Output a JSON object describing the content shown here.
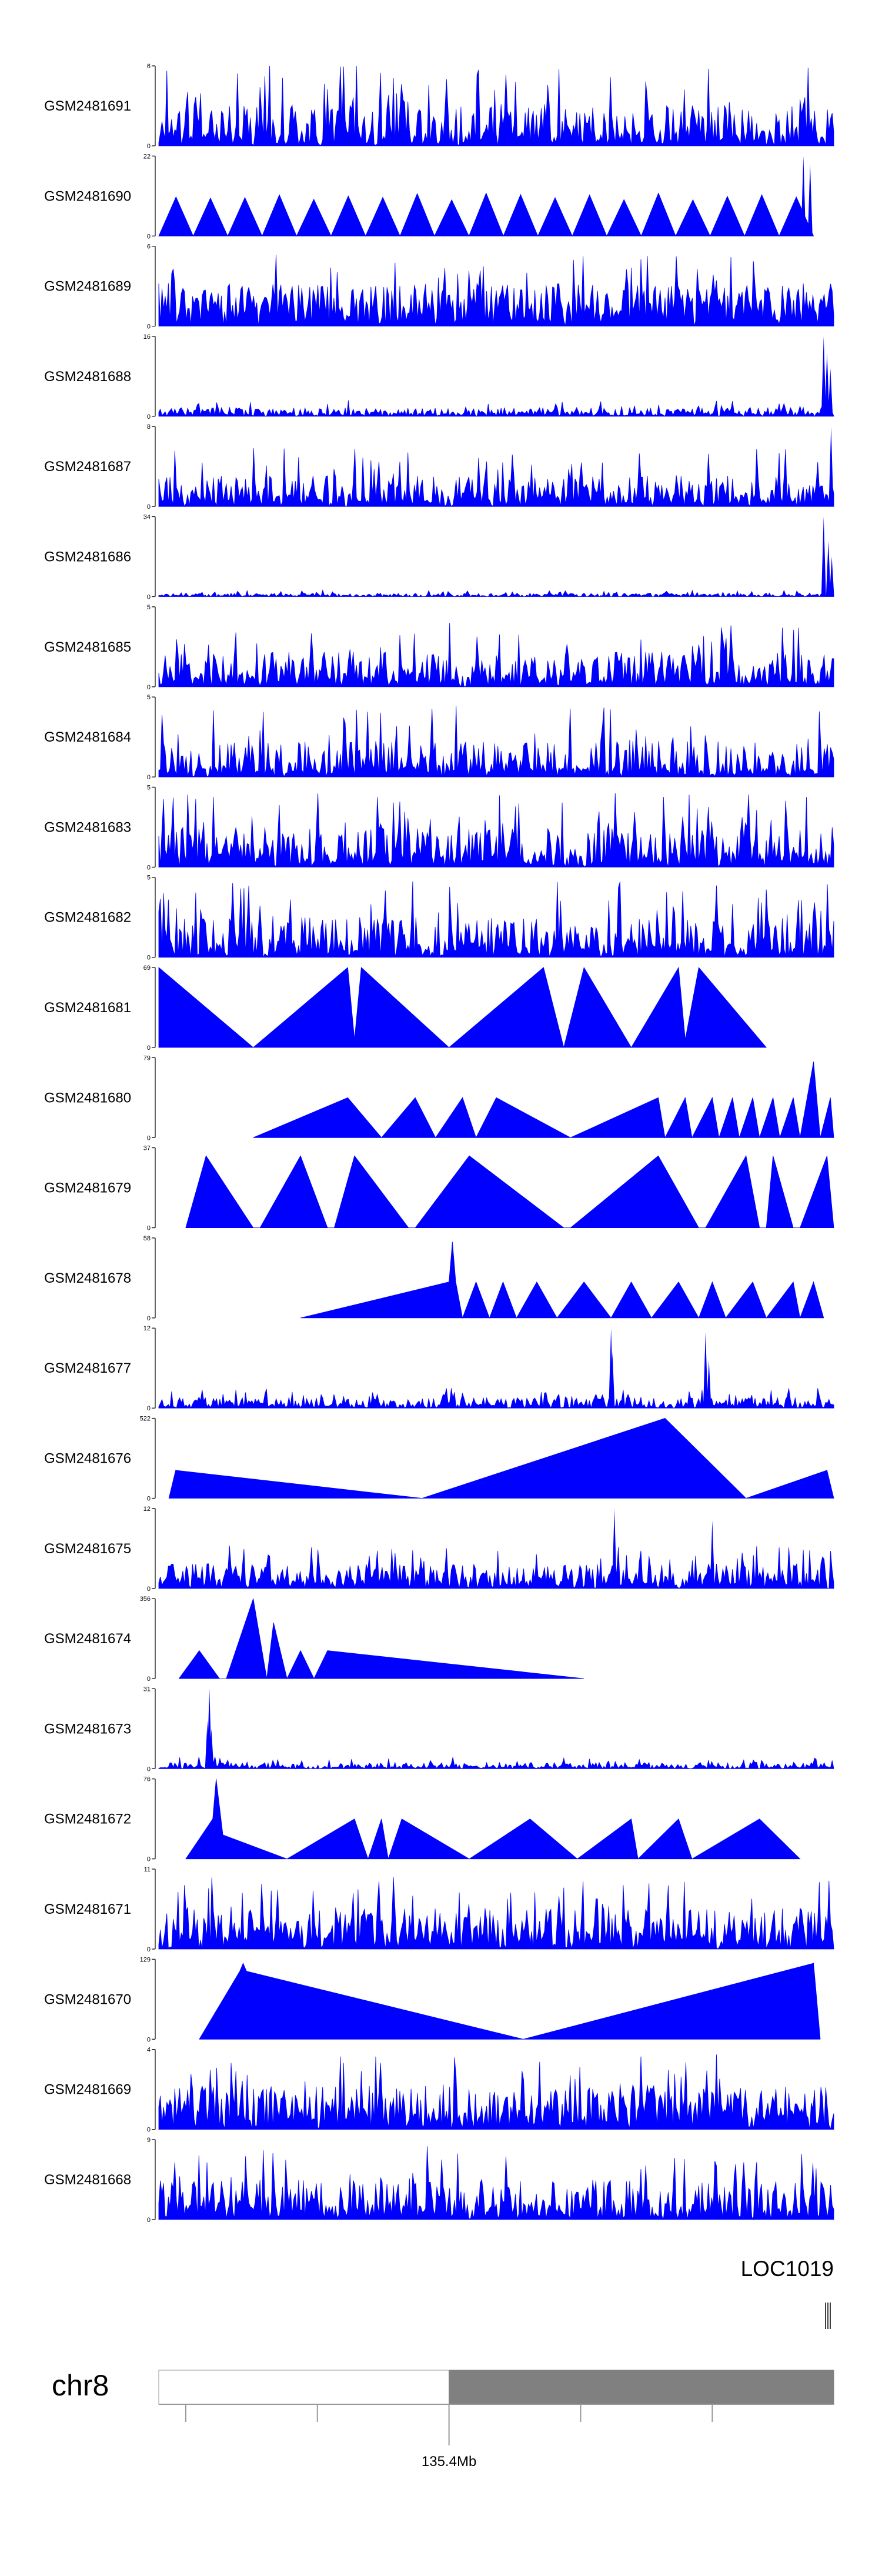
{
  "chart_data": {
    "type": "area",
    "tracks": [
      {
        "label": "GSM2481691",
        "ymax": "6",
        "ymin": "0",
        "pattern": "dense",
        "peak": 1.0,
        "fill": 0.2,
        "seed": 11
      },
      {
        "label": "GSM2481690",
        "ymax": "22",
        "ymin": "0",
        "pattern": "triangles",
        "peak": 1.0,
        "spikes": [
          [
            0.955,
            1.0
          ],
          [
            0.965,
            0.9
          ]
        ],
        "x_start": 0.0,
        "x_end": 0.97,
        "tri_count": 19,
        "tri_height": 0.5,
        "seed": 12
      },
      {
        "label": "GSM2481689",
        "ymax": "6",
        "ymin": "0",
        "pattern": "dense",
        "peak": 0.9,
        "fill": 0.3,
        "seed": 13
      },
      {
        "label": "GSM2481688",
        "ymax": "16",
        "ymin": "0",
        "pattern": "dense-low",
        "peak": 0.2,
        "fill": 0.05,
        "spikes": [
          [
            0.985,
            1.0
          ],
          [
            0.99,
            0.8
          ],
          [
            0.995,
            0.6
          ]
        ],
        "seed": 14
      },
      {
        "label": "GSM2481687",
        "ymax": "8",
        "ymin": "0",
        "pattern": "dense",
        "peak": 0.75,
        "fill": 0.15,
        "spikes": [
          [
            0.996,
            1.0
          ]
        ],
        "seed": 15
      },
      {
        "label": "GSM2481686",
        "ymax": "34",
        "ymin": "0",
        "pattern": "dense-low",
        "peak": 0.08,
        "fill": 0.02,
        "spikes": [
          [
            0.985,
            1.0
          ],
          [
            0.992,
            0.7
          ],
          [
            0.997,
            0.5
          ]
        ],
        "seed": 16
      },
      {
        "label": "GSM2481685",
        "ymax": "5",
        "ymin": "0",
        "pattern": "dense",
        "peak": 0.8,
        "fill": 0.2,
        "seed": 17
      },
      {
        "label": "GSM2481684",
        "ymax": "5",
        "ymin": "0",
        "pattern": "dense",
        "peak": 0.9,
        "fill": 0.15,
        "seed": 18
      },
      {
        "label": "GSM2481683",
        "ymax": "5",
        "ymin": "0",
        "pattern": "dense",
        "peak": 0.95,
        "fill": 0.2,
        "seed": 19
      },
      {
        "label": "GSM2481682",
        "ymax": "5",
        "ymin": "0",
        "pattern": "dense",
        "peak": 0.95,
        "fill": 0.2,
        "seed": 20
      },
      {
        "label": "GSM2481681",
        "ymax": "69",
        "ymin": "0",
        "pattern": "peaks",
        "peaks": [
          [
            0.0,
            1.0
          ],
          [
            0.14,
            0.0
          ],
          [
            0.28,
            1.0
          ],
          [
            0.29,
            0.1
          ],
          [
            0.3,
            1.0
          ],
          [
            0.43,
            0.0
          ],
          [
            0.57,
            1.0
          ],
          [
            0.6,
            0.0
          ],
          [
            0.63,
            1.0
          ],
          [
            0.7,
            0.0
          ],
          [
            0.77,
            1.0
          ],
          [
            0.78,
            0.1
          ],
          [
            0.8,
            1.0
          ],
          [
            0.9,
            0.0
          ]
        ]
      },
      {
        "label": "GSM2481680",
        "ymax": "79",
        "ymin": "0",
        "pattern": "peaks",
        "peaks": [
          [
            0.14,
            0.0
          ],
          [
            0.28,
            0.5
          ],
          [
            0.33,
            0.0
          ],
          [
            0.38,
            0.5
          ],
          [
            0.41,
            0.0
          ],
          [
            0.45,
            0.5
          ],
          [
            0.47,
            0.0
          ],
          [
            0.5,
            0.5
          ],
          [
            0.61,
            0.0
          ],
          [
            0.74,
            0.5
          ],
          [
            0.75,
            0.0
          ],
          [
            0.78,
            0.5
          ],
          [
            0.79,
            0.0
          ],
          [
            0.82,
            0.5
          ],
          [
            0.83,
            0.0
          ],
          [
            0.85,
            0.5
          ],
          [
            0.86,
            0.0
          ],
          [
            0.88,
            0.5
          ],
          [
            0.89,
            0.0
          ],
          [
            0.91,
            0.5
          ],
          [
            0.92,
            0.0
          ],
          [
            0.94,
            0.5
          ],
          [
            0.95,
            0.0
          ],
          [
            0.97,
            0.95
          ],
          [
            0.98,
            0.0
          ],
          [
            0.995,
            0.5
          ],
          [
            1.0,
            0.0
          ]
        ]
      },
      {
        "label": "GSM2481679",
        "ymax": "37",
        "ymin": "0",
        "pattern": "peaks",
        "peaks": [
          [
            0.04,
            0.0
          ],
          [
            0.07,
            0.9
          ],
          [
            0.14,
            0.0
          ],
          [
            0.15,
            0.0
          ],
          [
            0.21,
            0.9
          ],
          [
            0.25,
            0.0
          ],
          [
            0.26,
            0.0
          ],
          [
            0.29,
            0.9
          ],
          [
            0.37,
            0.0
          ],
          [
            0.38,
            0.0
          ],
          [
            0.46,
            0.9
          ],
          [
            0.6,
            0.0
          ],
          [
            0.61,
            0.0
          ],
          [
            0.74,
            0.9
          ],
          [
            0.8,
            0.0
          ],
          [
            0.81,
            0.0
          ],
          [
            0.87,
            0.9
          ],
          [
            0.89,
            0.0
          ],
          [
            0.9,
            0.0
          ],
          [
            0.91,
            0.9
          ],
          [
            0.94,
            0.0
          ],
          [
            0.95,
            0.0
          ],
          [
            0.99,
            0.9
          ],
          [
            1.0,
            0.0
          ]
        ]
      },
      {
        "label": "GSM2481678",
        "ymax": "58",
        "ymin": "0",
        "pattern": "peaks",
        "peaks": [
          [
            0.21,
            0.0
          ],
          [
            0.43,
            0.45
          ],
          [
            0.435,
            0.95
          ],
          [
            0.44,
            0.45
          ],
          [
            0.45,
            0.0
          ],
          [
            0.47,
            0.45
          ],
          [
            0.49,
            0.0
          ],
          [
            0.51,
            0.45
          ],
          [
            0.53,
            0.0
          ],
          [
            0.56,
            0.45
          ],
          [
            0.59,
            0.0
          ],
          [
            0.63,
            0.45
          ],
          [
            0.67,
            0.0
          ],
          [
            0.7,
            0.45
          ],
          [
            0.73,
            0.0
          ],
          [
            0.77,
            0.45
          ],
          [
            0.8,
            0.0
          ],
          [
            0.82,
            0.45
          ],
          [
            0.84,
            0.0
          ],
          [
            0.88,
            0.45
          ],
          [
            0.9,
            0.0
          ],
          [
            0.94,
            0.45
          ],
          [
            0.95,
            0.0
          ],
          [
            0.97,
            0.45
          ],
          [
            0.985,
            0.0
          ]
        ]
      },
      {
        "label": "GSM2481677",
        "ymax": "12",
        "ymin": "0",
        "pattern": "dense-low",
        "peak": 0.25,
        "fill": 0.05,
        "spikes": [
          [
            0.67,
            1.0
          ],
          [
            0.672,
            0.7
          ],
          [
            0.81,
            0.95
          ],
          [
            0.815,
            0.6
          ]
        ],
        "seed": 21
      },
      {
        "label": "GSM2481676",
        "ymax": "522",
        "ymin": "0",
        "pattern": "peaks",
        "peaks": [
          [
            0.015,
            0.0
          ],
          [
            0.025,
            0.35
          ],
          [
            0.39,
            0.0
          ],
          [
            0.75,
            1.0
          ],
          [
            0.87,
            0.0
          ],
          [
            0.99,
            0.35
          ],
          [
            1.0,
            0.0
          ]
        ]
      },
      {
        "label": "GSM2481675",
        "ymax": "12",
        "ymin": "0",
        "pattern": "dense",
        "peak": 0.55,
        "fill": 0.15,
        "spikes": [
          [
            0.675,
            1.0
          ],
          [
            0.82,
            0.85
          ]
        ],
        "seed": 22
      },
      {
        "label": "GSM2481674",
        "ymax": "356",
        "ymin": "0",
        "pattern": "peaks",
        "peaks": [
          [
            0.03,
            0.0
          ],
          [
            0.06,
            0.35
          ],
          [
            0.09,
            0.0
          ],
          [
            0.1,
            0.0
          ],
          [
            0.14,
            1.0
          ],
          [
            0.16,
            0.0
          ],
          [
            0.17,
            0.7
          ],
          [
            0.19,
            0.0
          ],
          [
            0.21,
            0.35
          ],
          [
            0.23,
            0.0
          ],
          [
            0.25,
            0.35
          ],
          [
            0.63,
            0.0
          ]
        ]
      },
      {
        "label": "GSM2481673",
        "ymax": "31",
        "ymin": "0",
        "pattern": "dense-low",
        "peak": 0.15,
        "fill": 0.03,
        "spikes": [
          [
            0.072,
            0.6
          ],
          [
            0.075,
            1.0
          ],
          [
            0.078,
            0.5
          ]
        ],
        "seed": 23
      },
      {
        "label": "GSM2481672",
        "ymax": "76",
        "ymin": "0",
        "pattern": "peaks",
        "peaks": [
          [
            0.04,
            0.0
          ],
          [
            0.08,
            0.5
          ],
          [
            0.085,
            1.0
          ],
          [
            0.095,
            0.3
          ],
          [
            0.19,
            0.0
          ],
          [
            0.29,
            0.5
          ],
          [
            0.31,
            0.0
          ],
          [
            0.33,
            0.5
          ],
          [
            0.34,
            0.0
          ],
          [
            0.36,
            0.5
          ],
          [
            0.46,
            0.0
          ],
          [
            0.55,
            0.5
          ],
          [
            0.62,
            0.0
          ],
          [
            0.7,
            0.5
          ],
          [
            0.71,
            0.0
          ],
          [
            0.71,
            0.0
          ],
          [
            0.77,
            0.5
          ],
          [
            0.79,
            0.0
          ],
          [
            0.89,
            0.5
          ],
          [
            0.95,
            0.0
          ]
        ]
      },
      {
        "label": "GSM2481671",
        "ymax": "11",
        "ymin": "0",
        "pattern": "dense",
        "peak": 0.9,
        "fill": 0.25,
        "seed": 24
      },
      {
        "label": "GSM2481670",
        "ymax": "129",
        "ymin": "0",
        "pattern": "peaks",
        "peaks": [
          [
            0.06,
            0.0
          ],
          [
            0.12,
            0.85
          ],
          [
            0.125,
            0.95
          ],
          [
            0.13,
            0.85
          ],
          [
            0.54,
            0.0
          ],
          [
            0.97,
            0.95
          ],
          [
            0.98,
            0.0
          ]
        ]
      },
      {
        "label": "GSM2481669",
        "ymax": "4",
        "ymin": "0",
        "pattern": "dense",
        "peak": 0.95,
        "fill": 0.3,
        "seed": 25
      },
      {
        "label": "GSM2481668",
        "ymax": "9",
        "ymin": "0",
        "pattern": "dense",
        "peak": 0.95,
        "fill": 0.2,
        "seed": 26
      }
    ],
    "gene": {
      "name": "LOC1019"
    },
    "ideogram": {
      "chromosome": "chr8",
      "position_label": "135.4Mb",
      "band_split": 0.43,
      "ticks": [
        0.04,
        0.235,
        0.43,
        0.625,
        0.82
      ],
      "labeled_tick": 0.43
    },
    "colors": {
      "signal": "#0000ff",
      "axis": "#000000",
      "band_light": "#ffffff",
      "band_dark": "#808080"
    }
  }
}
